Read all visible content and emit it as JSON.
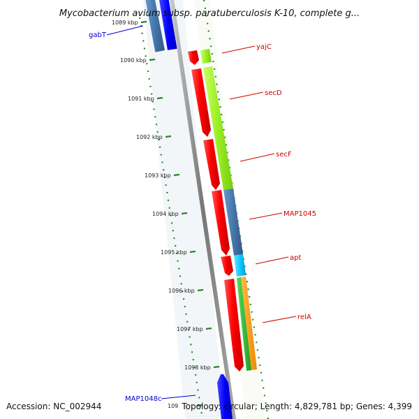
{
  "title": "Mycobacterium avium subsp. paratuberculosis K-10, complete g...",
  "accession": "Accession: NC_002944",
  "topology": "Topology: circular; Length: 4,829,781 bp; Genes: 4,399",
  "ticks": [
    "1089 kbp",
    "1090 kbp",
    "1091 kbp",
    "1092 kbp",
    "1093 kbp",
    "1094 kbp",
    "1095 kbp",
    "1096 kbp",
    "1097 kbp",
    "1098 kbp",
    "109"
  ],
  "genes": [
    {
      "name": "gabT",
      "strand": "minus",
      "color": "#0000cc"
    },
    {
      "name": "yajC",
      "strand": "plus",
      "color": "#cc0000"
    },
    {
      "name": "secD",
      "strand": "plus",
      "color": "#cc0000"
    },
    {
      "name": "secF",
      "strand": "plus",
      "color": "#cc0000"
    },
    {
      "name": "MAP1045",
      "strand": "plus",
      "color": "#cc0000"
    },
    {
      "name": "apt",
      "strand": "plus",
      "color": "#cc0000"
    },
    {
      "name": "relA",
      "strand": "plus",
      "color": "#cc0000"
    },
    {
      "name": "MAP1048c",
      "strand": "minus",
      "color": "#0000cc"
    }
  ],
  "colors": {
    "forward_gene": "#ff0000",
    "reverse_gene": "#0000ff",
    "cog_green": "#99ee22",
    "cog_steel": "#4477aa",
    "cog_cyan": "#11ccff",
    "cog_orange": "#ff9900",
    "cog_green2": "#33bb33",
    "backbone": "#888888",
    "dots": "#228822"
  }
}
